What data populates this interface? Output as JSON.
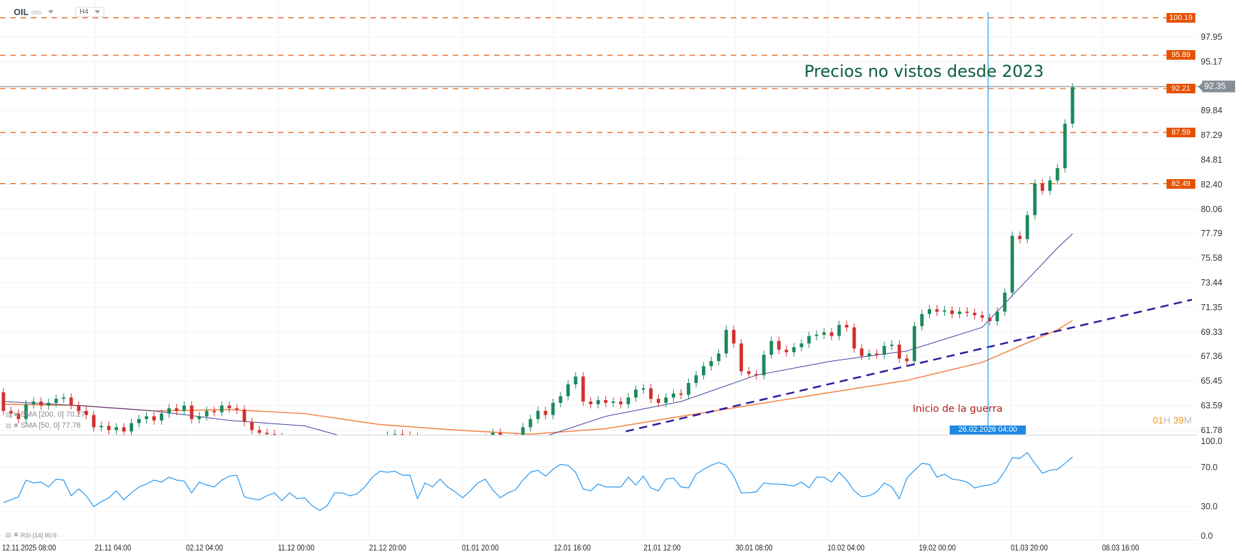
{
  "header": {
    "symbol": "OIL",
    "symbol_type": "CFD",
    "timeframe": "H4"
  },
  "annotations": {
    "title": "Precios no vistos desde 2023",
    "event_label": "Inicio de la guerra",
    "event_date": "26.02.2026 04:00",
    "countdown": {
      "hours": "01",
      "h_unit": "H",
      "minutes": "39",
      "m_unit": "M"
    }
  },
  "legend": {
    "sma200": "SMA [200, 0] 70.27",
    "sma50": "SMA [50, 0] 77.78",
    "rsi": "RSI [14] 80.6"
  },
  "colors": {
    "up": "#1b8a5a",
    "down": "#d32f2f",
    "sma200": "#f4874b",
    "sma50": "#3f3f9f",
    "trendline": "#2a1a9e",
    "levels": "#e65100",
    "rsi": "#2196f3",
    "event_line": "#2196f3",
    "current": "#868e96"
  },
  "chart_data": [
    {
      "type": "candlestick",
      "scale": "log",
      "ylim": [
        61.78,
        100.19
      ],
      "grid": true,
      "y_ticks": [
        "97.95",
        "95.17",
        "92.47",
        "89.84",
        "87.29",
        "84.81",
        "82.40",
        "80.06",
        "77.79",
        "75.58",
        "73.44",
        "71.35",
        "69.33",
        "67.36",
        "65.45",
        "63.59",
        "61.78"
      ],
      "x_ticks": [
        "12.11.2025  08:00",
        "21.11 04:00",
        "02.12 04:00",
        "11.12 00:00",
        "21.12 20:00",
        "01.01 20:00",
        "12.01 16:00",
        "21.01 12:00",
        "30.01 08:00",
        "10.02 04:00",
        "19.02 00:00",
        "01.03 20:00",
        "08.03 16:00"
      ],
      "first_open": 64.6,
      "closes": [
        63.2,
        63.0,
        62.6,
        63.7,
        63.9,
        63.6,
        63.8,
        64.1,
        64.2,
        63.6,
        63.2,
        62.9,
        62.0,
        62.1,
        61.8,
        62.0,
        61.7,
        62.3,
        62.6,
        62.8,
        62.5,
        63.0,
        63.4,
        63.2,
        63.6,
        62.6,
        62.8,
        63.2,
        63.1,
        63.6,
        63.4,
        63.3,
        62.4,
        61.8,
        61.6,
        61.5,
        61.3,
        61.0,
        60.7,
        60.5,
        60.4,
        60.6,
        60.8,
        60.6,
        60.7,
        60.9,
        60.6,
        60.5,
        60.8,
        60.9,
        61.0,
        61.4,
        61.5,
        61.4,
        61.3,
        60.9,
        60.7,
        60.5,
        60.6,
        60.8,
        60.7,
        60.9,
        61.0,
        60.8,
        61.2,
        61.6,
        61.0,
        60.8,
        61.2,
        62.0,
        62.6,
        63.2,
        62.9,
        63.8,
        64.3,
        65.2,
        65.8,
        63.9,
        63.7,
        64.0,
        63.8,
        63.9,
        63.7,
        64.2,
        64.8,
        64.9,
        64.1,
        63.8,
        64.2,
        64.5,
        64.4,
        65.3,
        65.9,
        66.6,
        67.0,
        67.6,
        69.5,
        68.4,
        66.2,
        66.0,
        65.9,
        67.5,
        68.6,
        67.9,
        67.7,
        68.1,
        68.4,
        69.0,
        69.1,
        69.3,
        69.0,
        69.9,
        69.7,
        68.0,
        67.4,
        67.6,
        67.5,
        68.2,
        68.3,
        67.2,
        67.0,
        69.8,
        70.8,
        71.2,
        71.0,
        71.1,
        70.8,
        71.0,
        70.9,
        70.7,
        70.5,
        70.2,
        71.0,
        72.6,
        77.6,
        77.3,
        79.5,
        82.5,
        81.8,
        82.8,
        84.0,
        88.5,
        92.35
      ],
      "current_price": "92.35",
      "levels": [
        "100.19",
        "95.89",
        "92.21",
        "87.59",
        "82.49"
      ],
      "sma200": [
        [
          0,
          63.7
        ],
        [
          10,
          63.6
        ],
        [
          20,
          63.2
        ],
        [
          30,
          63.3
        ],
        [
          40,
          63.0
        ],
        [
          50,
          62.2
        ],
        [
          60,
          61.8
        ],
        [
          70,
          61.5
        ],
        [
          80,
          61.9
        ],
        [
          90,
          62.8
        ],
        [
          100,
          63.7
        ],
        [
          110,
          64.6
        ],
        [
          120,
          65.5
        ],
        [
          130,
          66.9
        ],
        [
          140,
          69.5
        ],
        [
          142,
          70.27
        ]
      ],
      "sma50": [
        [
          0,
          63.9
        ],
        [
          10,
          63.6
        ],
        [
          20,
          63.2
        ],
        [
          30,
          62.5
        ],
        [
          40,
          62.1
        ],
        [
          50,
          60.6
        ],
        [
          60,
          60.5
        ],
        [
          70,
          61.0
        ],
        [
          80,
          62.8
        ],
        [
          90,
          63.9
        ],
        [
          100,
          65.9
        ],
        [
          110,
          67.0
        ],
        [
          120,
          67.8
        ],
        [
          130,
          69.7
        ],
        [
          140,
          76.5
        ],
        [
          142,
          77.78
        ]
      ],
      "trendline": {
        "from_price": 61.7,
        "to_price": 72.0
      }
    },
    {
      "type": "line",
      "series_label": "RSI [14]",
      "ylim": [
        0,
        100
      ],
      "y_ticks": [
        "100.0",
        "70.0",
        "30.0",
        "0.0"
      ],
      "values": [
        34,
        37,
        40,
        57,
        54,
        55,
        50,
        58,
        57,
        41,
        48,
        41,
        30,
        35,
        39,
        46,
        37,
        44,
        50,
        53,
        57,
        55,
        60,
        57,
        56,
        44,
        55,
        52,
        50,
        57,
        61,
        62,
        40,
        38,
        37,
        41,
        44,
        36,
        44,
        38,
        39,
        31,
        26,
        31,
        44,
        44,
        41,
        43,
        50,
        60,
        66,
        65,
        66,
        62,
        62,
        38,
        54,
        50,
        58,
        50,
        45,
        39,
        46,
        54,
        58,
        47,
        39,
        44,
        47,
        57,
        65,
        67,
        61,
        68,
        73,
        72,
        65,
        48,
        46,
        53,
        50,
        50,
        50,
        60,
        52,
        61,
        49,
        46,
        58,
        59,
        50,
        49,
        63,
        68,
        72,
        75,
        72,
        61,
        44,
        44,
        45,
        54,
        53,
        53,
        52,
        51,
        55,
        49,
        60,
        60,
        55,
        65,
        57,
        46,
        40,
        41,
        45,
        54,
        50,
        38,
        59,
        67,
        74,
        73,
        60,
        63,
        58,
        57,
        55,
        49,
        51,
        52,
        55,
        66,
        80,
        79,
        85,
        74,
        64,
        67,
        68,
        74,
        80.6
      ]
    }
  ]
}
